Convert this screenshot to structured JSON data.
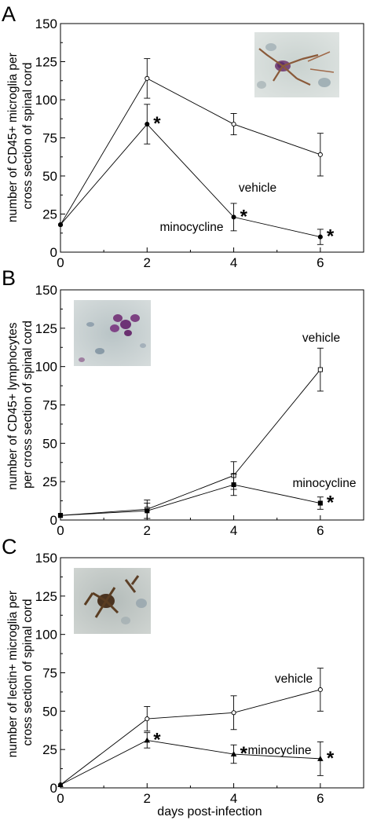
{
  "figure": {
    "xlabel": "days post-infection"
  },
  "chart_data": [
    {
      "panel": "A",
      "type": "line",
      "ylabel_lines": [
        "number of CD45+ microglia per",
        "cross section of spinal cord"
      ],
      "xlim": [
        0,
        7
      ],
      "ylim": [
        0,
        150
      ],
      "xticks": [
        0,
        2,
        4,
        6
      ],
      "yticks": [
        0,
        25,
        50,
        75,
        100,
        125,
        150
      ],
      "micrograph": "purple-brown stained microglia",
      "series": [
        {
          "name": "vehicle",
          "marker": "open-circle",
          "x": [
            0,
            2,
            4,
            6
          ],
          "y": [
            18,
            114,
            84,
            64
          ],
          "err": [
            0,
            13,
            7,
            14
          ],
          "stars": []
        },
        {
          "name": "minocycline",
          "marker": "filled-circle",
          "x": [
            0,
            2,
            4,
            6
          ],
          "y": [
            18,
            84,
            23,
            10
          ],
          "err": [
            0,
            13,
            9,
            5
          ],
          "stars": [
            2,
            4,
            6
          ]
        }
      ]
    },
    {
      "panel": "B",
      "type": "line",
      "ylabel_lines": [
        "number of CD45+ lymphocytes",
        "per cross section of spinal cord"
      ],
      "xlim": [
        0,
        7
      ],
      "ylim": [
        0,
        150
      ],
      "xticks": [
        0,
        2,
        4,
        6
      ],
      "yticks": [
        0,
        25,
        50,
        75,
        100,
        125,
        150
      ],
      "micrograph": "purple stained lymphocytes",
      "series": [
        {
          "name": "vehicle",
          "marker": "open-square",
          "x": [
            0,
            2,
            4,
            6
          ],
          "y": [
            3,
            7,
            29,
            98
          ],
          "err": [
            0,
            6,
            9,
            14
          ],
          "stars": []
        },
        {
          "name": "minocycline",
          "marker": "filled-square",
          "x": [
            0,
            2,
            4,
            6
          ],
          "y": [
            3,
            6,
            23,
            11
          ],
          "err": [
            0,
            5,
            7,
            4
          ],
          "stars": [
            6
          ]
        }
      ]
    },
    {
      "panel": "C",
      "type": "line",
      "ylabel_lines": [
        "number of lectin+ microglia per",
        "cross section of spinal cord"
      ],
      "xlim": [
        0,
        7
      ],
      "ylim": [
        0,
        150
      ],
      "xticks": [
        0,
        2,
        4,
        6
      ],
      "yticks": [
        0,
        25,
        50,
        75,
        100,
        125,
        150
      ],
      "micrograph": "brown stained lectin+ microglia",
      "series": [
        {
          "name": "vehicle",
          "marker": "open-circle",
          "x": [
            0,
            2,
            4,
            6
          ],
          "y": [
            2,
            45,
            49,
            64
          ],
          "err": [
            0,
            8,
            11,
            14
          ],
          "stars": []
        },
        {
          "name": "minocycline",
          "marker": "filled-triangle",
          "x": [
            0,
            2,
            4,
            6
          ],
          "y": [
            2,
            31,
            22,
            19
          ],
          "err": [
            0,
            5,
            6,
            11
          ],
          "stars": [
            2,
            4,
            6
          ]
        }
      ]
    }
  ]
}
